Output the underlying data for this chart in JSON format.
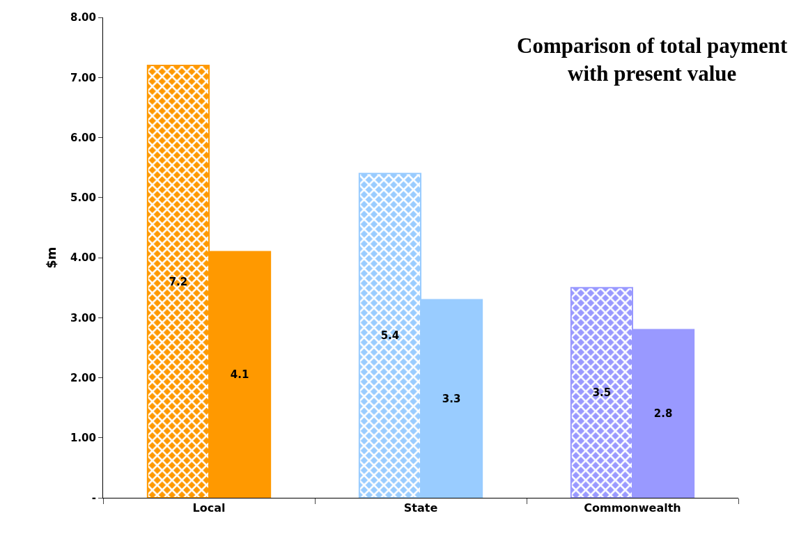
{
  "chart_data": {
    "type": "bar",
    "title": "Comparison of total payment\nwith present value",
    "ylabel": "$m",
    "categories": [
      "Local",
      "State",
      "Commonwealth"
    ],
    "series": [
      {
        "colors": [
          "#ff9900",
          "#99ccff",
          "#9999ff"
        ],
        "values": [
          7.2,
          5.4,
          3.5
        ]
      },
      {
        "colors": [
          "#ff9900",
          "#99ccff",
          "#9999ff"
        ],
        "values": [
          4.1,
          3.3,
          2.8
        ]
      }
    ],
    "ylim": [
      0,
      8
    ],
    "yticks": [
      {
        "value": 0,
        "label": "-"
      },
      {
        "value": 1,
        "label": "1.00"
      },
      {
        "value": 2,
        "label": "2.00"
      },
      {
        "value": 3,
        "label": "3.00"
      },
      {
        "value": 4,
        "label": "4.00"
      },
      {
        "value": 5,
        "label": "5.00"
      },
      {
        "value": 6,
        "label": "6.00"
      },
      {
        "value": 7,
        "label": "7.00"
      },
      {
        "value": 8,
        "label": "8.00"
      }
    ],
    "data_labels": true
  }
}
